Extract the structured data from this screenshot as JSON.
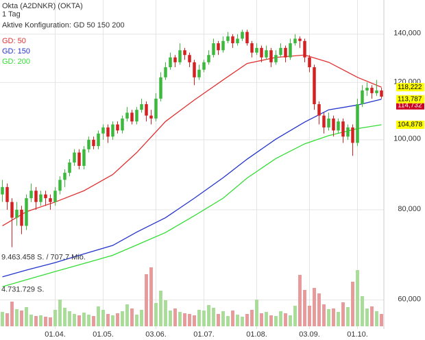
{
  "chart_data": {
    "type": "candlestick",
    "title": "Okta (A2DNKR) (OKTA)",
    "subtitle": "1 Tag",
    "config": "Aktive Konfiguration: GD 50 150 200",
    "log_scale": true,
    "grid": true,
    "color_up": "#3cb83c",
    "color_down": "#d42020",
    "categories": [
      null,
      null,
      null,
      null,
      null,
      null,
      null,
      null,
      null,
      null,
      null,
      "01.04.",
      null,
      null,
      null,
      null,
      null,
      null,
      null,
      null,
      null,
      "01.05.",
      null,
      null,
      null,
      null,
      null,
      null,
      null,
      null,
      null,
      null,
      "03.06.",
      null,
      null,
      null,
      null,
      null,
      null,
      null,
      null,
      null,
      "01.07.",
      null,
      null,
      null,
      null,
      null,
      null,
      null,
      null,
      null,
      null,
      "01.08.",
      null,
      null,
      null,
      null,
      null,
      null,
      null,
      null,
      null,
      null,
      "03.09.",
      null,
      null,
      null,
      null,
      null,
      null,
      null,
      null,
      null,
      "01.10.",
      null,
      null,
      null,
      null,
      null
    ],
    "ohlc": [
      [
        84,
        88,
        82,
        86
      ],
      [
        86,
        87,
        80,
        82
      ],
      [
        82,
        83,
        71,
        78
      ],
      [
        78,
        82,
        76,
        80
      ],
      [
        80,
        81,
        74,
        76
      ],
      [
        76,
        84,
        75,
        83
      ],
      [
        83,
        87,
        82,
        85
      ],
      [
        85,
        86,
        80,
        82
      ],
      [
        82,
        85,
        81,
        84
      ],
      [
        84,
        85,
        81,
        83
      ],
      [
        83,
        84,
        80,
        82
      ],
      [
        82,
        86,
        81,
        85
      ],
      [
        85,
        89,
        84,
        88
      ],
      [
        88,
        91,
        86,
        90
      ],
      [
        90,
        94,
        89,
        93
      ],
      [
        93,
        97,
        92,
        96
      ],
      [
        96,
        97,
        91,
        92
      ],
      [
        92,
        98,
        91,
        97
      ],
      [
        97,
        101,
        96,
        100
      ],
      [
        100,
        101,
        97,
        98
      ],
      [
        98,
        103,
        97,
        102
      ],
      [
        102,
        105,
        100,
        104
      ],
      [
        104,
        105,
        99,
        101
      ],
      [
        101,
        106,
        100,
        105
      ],
      [
        105,
        106,
        102,
        103
      ],
      [
        103,
        108,
        102,
        107
      ],
      [
        107,
        111,
        106,
        109
      ],
      [
        109,
        110,
        105,
        106
      ],
      [
        106,
        111,
        105,
        110
      ],
      [
        110,
        114,
        109,
        112
      ],
      [
        112,
        113,
        106,
        108
      ],
      [
        108,
        110,
        105,
        107
      ],
      [
        107,
        116,
        106,
        114
      ],
      [
        114,
        124,
        113,
        122
      ],
      [
        122,
        128,
        121,
        126
      ],
      [
        126,
        132,
        125,
        130
      ],
      [
        130,
        131,
        126,
        128
      ],
      [
        128,
        136,
        127,
        133
      ],
      [
        133,
        134,
        129,
        131
      ],
      [
        131,
        132,
        126,
        128
      ],
      [
        128,
        129,
        119,
        122
      ],
      [
        122,
        127,
        121,
        125
      ],
      [
        125,
        129,
        124,
        128
      ],
      [
        128,
        133,
        127,
        131
      ],
      [
        131,
        138,
        130,
        136
      ],
      [
        136,
        137,
        131,
        133
      ],
      [
        133,
        139,
        132,
        137
      ],
      [
        137,
        141,
        136,
        139
      ],
      [
        139,
        140,
        134,
        136
      ],
      [
        136,
        140,
        135,
        138
      ],
      [
        138,
        142,
        137,
        141
      ],
      [
        141,
        142,
        135,
        136
      ],
      [
        136,
        137,
        130,
        132
      ],
      [
        132,
        136,
        131,
        134
      ],
      [
        134,
        135,
        128,
        130
      ],
      [
        130,
        135,
        129,
        133
      ],
      [
        133,
        134,
        126,
        128
      ],
      [
        128,
        133,
        127,
        131
      ],
      [
        131,
        136,
        130,
        134
      ],
      [
        134,
        135,
        128,
        130
      ],
      [
        130,
        138,
        129,
        136
      ],
      [
        136,
        140,
        135,
        138
      ],
      [
        138,
        139,
        134,
        137
      ],
      [
        137,
        138,
        128,
        130
      ],
      [
        130,
        131,
        124,
        126
      ],
      [
        126,
        127,
        110,
        112
      ],
      [
        112,
        113,
        105,
        108
      ],
      [
        108,
        109,
        102,
        104
      ],
      [
        104,
        109,
        103,
        107
      ],
      [
        107,
        108,
        101,
        103
      ],
      [
        103,
        107,
        102,
        106
      ],
      [
        106,
        107,
        99,
        101
      ],
      [
        101,
        105,
        100,
        104
      ],
      [
        104,
        105,
        95,
        99
      ],
      [
        99,
        114,
        98,
        112
      ],
      [
        112,
        119,
        111,
        117
      ],
      [
        117,
        120,
        115,
        118
      ],
      [
        118,
        119,
        114,
        116
      ],
      [
        116,
        121,
        115,
        117
      ],
      [
        117,
        118,
        114,
        114.732
      ]
    ],
    "volume": [
      2100000,
      1900000,
      3600000,
      2500000,
      2300000,
      2800000,
      1700000,
      1500000,
      1600000,
      1400000,
      1300000,
      2400000,
      3900000,
      2700000,
      2200000,
      1800000,
      1600000,
      2000000,
      1700000,
      1500000,
      2900000,
      2400000,
      1800000,
      1600000,
      1900000,
      2200000,
      3200000,
      2600000,
      1700000,
      2400000,
      7600000,
      8600000,
      3400000,
      5200000,
      3800000,
      2300000,
      2600000,
      2100000,
      1900000,
      1800000,
      1600000,
      2400000,
      2300000,
      3100000,
      2700000,
      1800000,
      2200000,
      1500000,
      2300000,
      1700000,
      1400000,
      1800000,
      2400000,
      3900000,
      1900000,
      2100000,
      1600000,
      1500000,
      2200000,
      1900000,
      1600000,
      3000000,
      7500000,
      5300000,
      3000000,
      5600000,
      4800000,
      3200000,
      2500000,
      2600000,
      2100000,
      3500000,
      2800000,
      6500000,
      8200000,
      4400000,
      2600000,
      2900000,
      2200000,
      1800000
    ],
    "vlim": [
      0,
      10000000
    ],
    "volume_levels": [
      {
        "value": 9463458,
        "label": "9.463.458 S. / 707,7 Mio."
      },
      {
        "value": 4731729,
        "label": "4.731.729 S."
      }
    ],
    "ylim": [
      54.7,
      156.1
    ],
    "yticks": [
      {
        "value": 60,
        "label": "60,000"
      },
      {
        "value": 80,
        "label": "80,000"
      },
      {
        "value": 100,
        "label": "100,000"
      },
      {
        "value": 120,
        "label": "120,000"
      },
      {
        "value": 140,
        "label": "140,000"
      }
    ],
    "series": [
      {
        "name": "GD: 50",
        "color": "#e03030",
        "x": [
          0,
          5,
          11,
          17,
          23,
          28,
          34,
          40,
          46,
          51,
          57,
          63,
          68,
          74,
          79
        ],
        "values": [
          76,
          79.5,
          82,
          85,
          89.5,
          96,
          106,
          113.5,
          121,
          127.5,
          130,
          131,
          128,
          122,
          118.222
        ]
      },
      {
        "name": "GD: 150",
        "color": "#2233cc",
        "x": [
          0,
          5,
          11,
          17,
          23,
          28,
          34,
          40,
          46,
          51,
          57,
          63,
          68,
          74,
          79
        ],
        "values": [
          64.6,
          66,
          67.6,
          69.5,
          71.4,
          74.5,
          78,
          83,
          88.6,
          94,
          100.2,
          105.8,
          110,
          111.7,
          113.787
        ]
      },
      {
        "name": "GD: 200",
        "color": "#33dd33",
        "x": [
          0,
          5,
          11,
          17,
          23,
          28,
          34,
          40,
          46,
          51,
          57,
          63,
          68,
          74,
          79
        ],
        "values": [
          62.6,
          64,
          65.7,
          67.4,
          69.2,
          71.5,
          74.4,
          78.5,
          83,
          88.5,
          94.2,
          98.7,
          101.3,
          103.6,
          104.878
        ]
      }
    ],
    "price_tags": [
      {
        "value": 118.222,
        "label": "118,222",
        "color": "#ffff00"
      },
      {
        "value": 113.787,
        "label": "113,787",
        "color": "#ffff00"
      },
      {
        "value": 114.732,
        "label": "114,732",
        "color": "#cc0022"
      },
      {
        "value": 104.878,
        "label": "104,878",
        "color": "#ffff00"
      }
    ]
  }
}
